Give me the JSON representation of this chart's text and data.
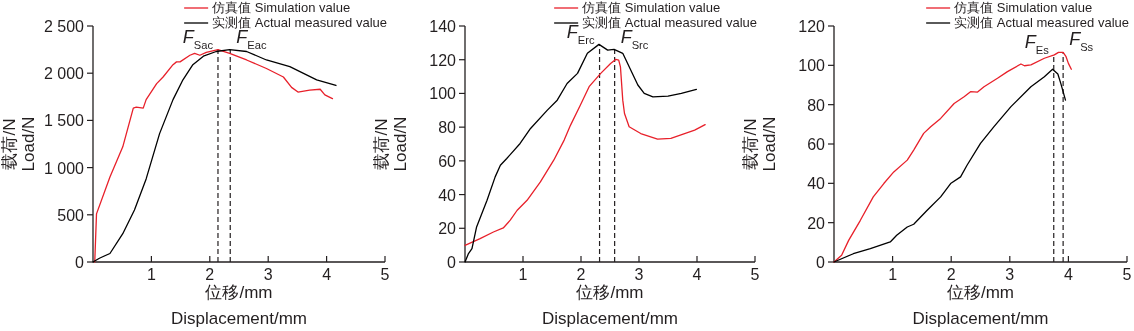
{
  "chart_data": [
    {
      "type": "line",
      "xlabel": "位移/mm\nDisplacement/mm",
      "ylabel": "载荷/N\nLoad/N",
      "xlim": [
        0,
        5
      ],
      "ylim": [
        0,
        2500
      ],
      "xticks": [
        1,
        2,
        3,
        4,
        5
      ],
      "yticks": [
        0,
        500,
        {
          "value": 1000,
          "label": "1 000"
        },
        {
          "value": 1500,
          "label": "1 500"
        },
        {
          "value": 2000,
          "label": "2 000"
        },
        {
          "value": 2500,
          "label": "2 500"
        }
      ],
      "legend": "top right",
      "line_style": "solid",
      "series": [
        {
          "name": "仿真值 Simulation value",
          "color": "#e8202a",
          "x": [
            0.03,
            0.06,
            0.29,
            0.51,
            0.69,
            0.74,
            0.86,
            0.91,
            1.09,
            1.2,
            1.37,
            1.43,
            1.49,
            1.66,
            1.74,
            1.83,
            1.94,
            2.14,
            2.34,
            2.63,
            2.97,
            3.26,
            3.4,
            3.51,
            3.71,
            3.89,
            3.97,
            4.1
          ],
          "values": [
            0,
            510,
            900,
            1220,
            1630,
            1640,
            1630,
            1720,
            1890,
            1960,
            2090,
            2120,
            2120,
            2190,
            2210,
            2190,
            2220,
            2250,
            2210,
            2140,
            2050,
            1960,
            1850,
            1800,
            1820,
            1830,
            1770,
            1730
          ]
        },
        {
          "name": "实测值 Actual measured value",
          "color": "#000000",
          "x": [
            0,
            0.11,
            0.29,
            0.51,
            0.71,
            0.91,
            1.14,
            1.37,
            1.54,
            1.71,
            1.89,
            2.11,
            2.34,
            2.63,
            2.97,
            3.37,
            3.83,
            4.16
          ],
          "values": [
            0,
            40,
            90,
            300,
            550,
            880,
            1360,
            1720,
            1930,
            2090,
            2180,
            2230,
            2250,
            2230,
            2140,
            2070,
            1930,
            1870
          ]
        }
      ],
      "ref_lines": [
        {
          "axis": "x",
          "value": 2.14,
          "color": "#231f20",
          "line_style": "dashed"
        },
        {
          "axis": "x",
          "value": 2.35,
          "color": "#231f20",
          "line_style": "dashed"
        }
      ],
      "annotations": [
        "F$_{Sac}$",
        "F$_{Eac}$"
      ]
    },
    {
      "type": "line",
      "xlabel": "位移/mm\nDisplacement/mm",
      "ylabel": "载荷/N\nLoad/N",
      "xlim": [
        0,
        5
      ],
      "ylim": [
        0,
        140
      ],
      "xticks": [
        1,
        2,
        3,
        4,
        5
      ],
      "yticks": [
        0,
        20,
        40,
        60,
        80,
        100,
        120,
        140
      ],
      "legend": "top right",
      "line_style": "solid",
      "series": [
        {
          "name": "仿真值 Simulation value",
          "color": "#e8202a",
          "x": [
            0,
            0.26,
            0.49,
            0.66,
            0.78,
            0.9,
            1.07,
            1.3,
            1.53,
            1.71,
            1.82,
            1.99,
            2.14,
            2.34,
            2.51,
            2.6,
            2.65,
            2.68,
            2.72,
            2.75,
            2.83,
            3.03,
            3.32,
            3.55,
            3.96,
            4.14
          ],
          "values": [
            9.9,
            13.9,
            17.8,
            20.2,
            24.8,
            30.7,
            36.6,
            47.5,
            60.4,
            72.3,
            81.2,
            93.1,
            104,
            111.9,
            117.8,
            120.2,
            119.8,
            115.8,
            96,
            88.1,
            80.2,
            76.2,
            72.9,
            73.3,
            78.2,
            81.5
          ]
        },
        {
          "name": "实测值 Actual measured value",
          "color": "#000000",
          "x": [
            0,
            0.06,
            0.12,
            0.2,
            0.38,
            0.52,
            0.61,
            0.72,
            0.95,
            1.13,
            1.42,
            1.59,
            1.76,
            1.94,
            2.11,
            2.31,
            2.46,
            2.57,
            2.72,
            2.98,
            3.09,
            3.24,
            3.5,
            3.73,
            3.99
          ],
          "values": [
            0,
            5,
            7.9,
            20.8,
            36.6,
            50.5,
            57.4,
            61.4,
            70.3,
            79.2,
            90.1,
            96,
            105.9,
            111.9,
            123.8,
            129.1,
            125.7,
            126.1,
            123.8,
            105,
            100,
            98,
            98.4,
            100,
            102.4
          ]
        }
      ],
      "ref_lines": [
        {
          "axis": "x",
          "value": 2.32,
          "color": "#231f20",
          "line_style": "dashed"
        },
        {
          "axis": "x",
          "value": 2.58,
          "color": "#231f20",
          "line_style": "dashed"
        }
      ],
      "annotations": [
        "F$_{Erc}$",
        "F$_{Src}$"
      ]
    },
    {
      "type": "line",
      "xlabel": "位移/mm\nDisplacement/mm",
      "ylabel": "载荷/N\nLoad/N",
      "xlim": [
        0,
        5
      ],
      "ylim": [
        0,
        120
      ],
      "xticks": [
        1,
        2,
        3,
        4,
        5
      ],
      "yticks": [
        0,
        20,
        40,
        60,
        80,
        100,
        120
      ],
      "legend": "top right",
      "line_style": "solid",
      "series": [
        {
          "name": "仿真值 Simulation value",
          "color": "#e8202a",
          "x": [
            0,
            0.13,
            0.25,
            0.45,
            0.67,
            0.85,
            1.02,
            1.25,
            1.36,
            1.53,
            1.65,
            1.82,
            2.05,
            2.22,
            2.33,
            2.45,
            2.56,
            2.79,
            2.96,
            3.19,
            3.25,
            3.36,
            3.59,
            3.76,
            3.83,
            3.91,
            3.96,
            4,
            4.05
          ],
          "values": [
            0,
            3.4,
            11,
            21.2,
            33.1,
            39.9,
            45.8,
            51.8,
            56.9,
            65.4,
            68.8,
            73,
            80.6,
            84,
            86.6,
            86.4,
            89.1,
            93.4,
            96.8,
            100.7,
            99.8,
            100.2,
            103.6,
            105.3,
            106.6,
            106.6,
            104.4,
            101,
            98
          ]
        },
        {
          "name": "实测值 Actual measured value",
          "color": "#000000",
          "x": [
            0,
            0.33,
            0.62,
            0.96,
            1.07,
            1.25,
            1.36,
            1.59,
            1.82,
            1.99,
            2.16,
            2.27,
            2.5,
            2.73,
            3.02,
            3.36,
            3.59,
            3.73,
            3.82,
            3.87,
            3.95
          ],
          "values": [
            0,
            4.2,
            6.8,
            10.2,
            13.6,
            17.8,
            19.2,
            26.3,
            33.1,
            39.9,
            43.3,
            49.2,
            60.3,
            68.8,
            79,
            89.1,
            94.2,
            98,
            95.6,
            90.8,
            82.3
          ]
        }
      ],
      "ref_lines": [
        {
          "axis": "x",
          "value": 3.75,
          "color": "#231f20",
          "line_style": "dashed"
        },
        {
          "axis": "x",
          "value": 3.91,
          "color": "#231f20",
          "line_style": "dashed"
        }
      ],
      "annotations": [
        "F$_{Es}$",
        "F$_{Ss}$"
      ]
    }
  ]
}
